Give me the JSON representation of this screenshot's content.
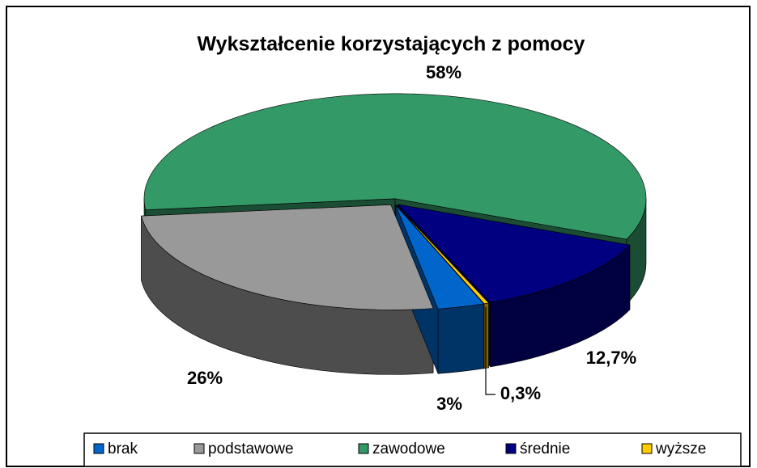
{
  "chart_data": {
    "type": "pie3d",
    "title": "Wykształcenie korzystających z pomocy",
    "categories": [
      "brak",
      "podstawowe",
      "zawodowe",
      "średnie",
      "wyższe"
    ],
    "values": [
      3,
      26,
      58,
      12.7,
      0.3
    ],
    "value_labels": [
      "3%",
      "26%",
      "58%",
      "12,7%",
      "0,3%"
    ],
    "colors": [
      "#0066cc",
      "#999999",
      "#339966",
      "#000080",
      "#ffcc00"
    ],
    "legend": "bottom"
  }
}
